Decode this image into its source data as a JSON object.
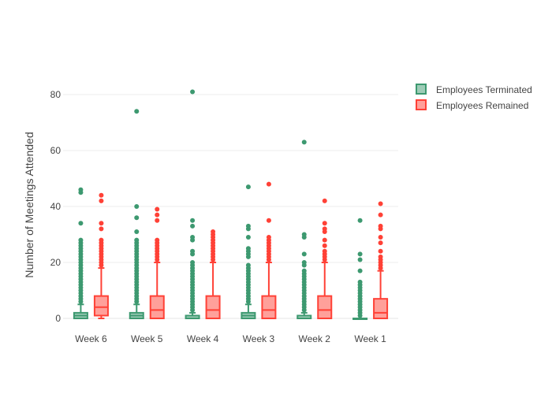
{
  "chart_data": {
    "type": "box",
    "title": "",
    "xlabel": "",
    "ylabel": "Number of Meetings Attended",
    "ylim": [
      -2,
      88
    ],
    "yticks": [
      0,
      20,
      40,
      60,
      80
    ],
    "grid": true,
    "legend_position": "top-right",
    "categories": [
      "Week 6",
      "Week 5",
      "Week 4",
      "Week 3",
      "Week 2",
      "Week 1"
    ],
    "series": [
      {
        "name": "Employees Terminated",
        "color": "#3D9970",
        "boxes": [
          {
            "lower": 0,
            "q1": 0,
            "median": 1,
            "q3": 2,
            "upper": 5,
            "outliers": [
              6,
              7,
              8,
              9,
              10,
              11,
              12,
              13,
              14,
              15,
              16,
              17,
              18,
              19,
              20,
              21,
              22,
              23,
              24,
              25,
              26,
              27,
              28,
              34,
              45,
              46
            ]
          },
          {
            "lower": 0,
            "q1": 0,
            "median": 1,
            "q3": 2,
            "upper": 5,
            "outliers": [
              6,
              7,
              8,
              9,
              10,
              11,
              12,
              13,
              14,
              15,
              16,
              17,
              18,
              19,
              20,
              21,
              22,
              23,
              24,
              25,
              26,
              27,
              28,
              31,
              36,
              40,
              74
            ]
          },
          {
            "lower": 0,
            "q1": 0,
            "median": 0,
            "q3": 1,
            "upper": 2,
            "outliers": [
              3,
              4,
              5,
              6,
              7,
              8,
              9,
              10,
              11,
              12,
              13,
              14,
              15,
              16,
              17,
              18,
              19,
              20,
              23,
              24,
              28,
              29,
              33,
              35,
              81
            ]
          },
          {
            "lower": 0,
            "q1": 0,
            "median": 1,
            "q3": 2,
            "upper": 5,
            "outliers": [
              6,
              7,
              8,
              9,
              10,
              11,
              12,
              13,
              14,
              15,
              16,
              17,
              18,
              19,
              22,
              23,
              24,
              25,
              29,
              32,
              33,
              47
            ]
          },
          {
            "lower": 0,
            "q1": 0,
            "median": 0,
            "q3": 1,
            "upper": 2,
            "outliers": [
              3,
              4,
              5,
              6,
              7,
              8,
              9,
              10,
              11,
              12,
              13,
              14,
              15,
              16,
              17,
              19,
              20,
              23,
              29,
              30,
              63
            ]
          },
          {
            "lower": 0,
            "q1": 0,
            "median": 0,
            "q3": 0,
            "upper": 0,
            "outliers": [
              1,
              2,
              3,
              4,
              5,
              6,
              7,
              8,
              9,
              10,
              11,
              12,
              13,
              17,
              21,
              23,
              35
            ]
          }
        ]
      },
      {
        "name": "Employees Remained",
        "color": "#FF4136",
        "boxes": [
          {
            "lower": 0,
            "q1": 1,
            "median": 4,
            "q3": 8,
            "upper": 18,
            "outliers": [
              19,
              20,
              21,
              22,
              23,
              24,
              25,
              26,
              27,
              28,
              32,
              34,
              42,
              44
            ]
          },
          {
            "lower": 0,
            "q1": 0,
            "median": 3,
            "q3": 8,
            "upper": 20,
            "outliers": [
              21,
              22,
              23,
              24,
              25,
              26,
              27,
              28,
              35,
              37,
              39
            ]
          },
          {
            "lower": 0,
            "q1": 0,
            "median": 3,
            "q3": 8,
            "upper": 20,
            "outliers": [
              21,
              22,
              23,
              24,
              25,
              26,
              27,
              28,
              29,
              30,
              31
            ]
          },
          {
            "lower": 0,
            "q1": 0,
            "median": 3,
            "q3": 8,
            "upper": 20,
            "outliers": [
              21,
              22,
              23,
              24,
              25,
              26,
              27,
              28,
              29,
              35,
              48
            ]
          },
          {
            "lower": 0,
            "q1": 0,
            "median": 3,
            "q3": 8,
            "upper": 20,
            "outliers": [
              21,
              22,
              23,
              24,
              26,
              28,
              31,
              32,
              34,
              42
            ]
          },
          {
            "lower": 0,
            "q1": 0,
            "median": 2,
            "q3": 7,
            "upper": 17,
            "outliers": [
              18,
              19,
              20,
              21,
              22,
              24,
              27,
              29,
              32,
              33,
              37,
              41
            ]
          }
        ]
      }
    ]
  }
}
